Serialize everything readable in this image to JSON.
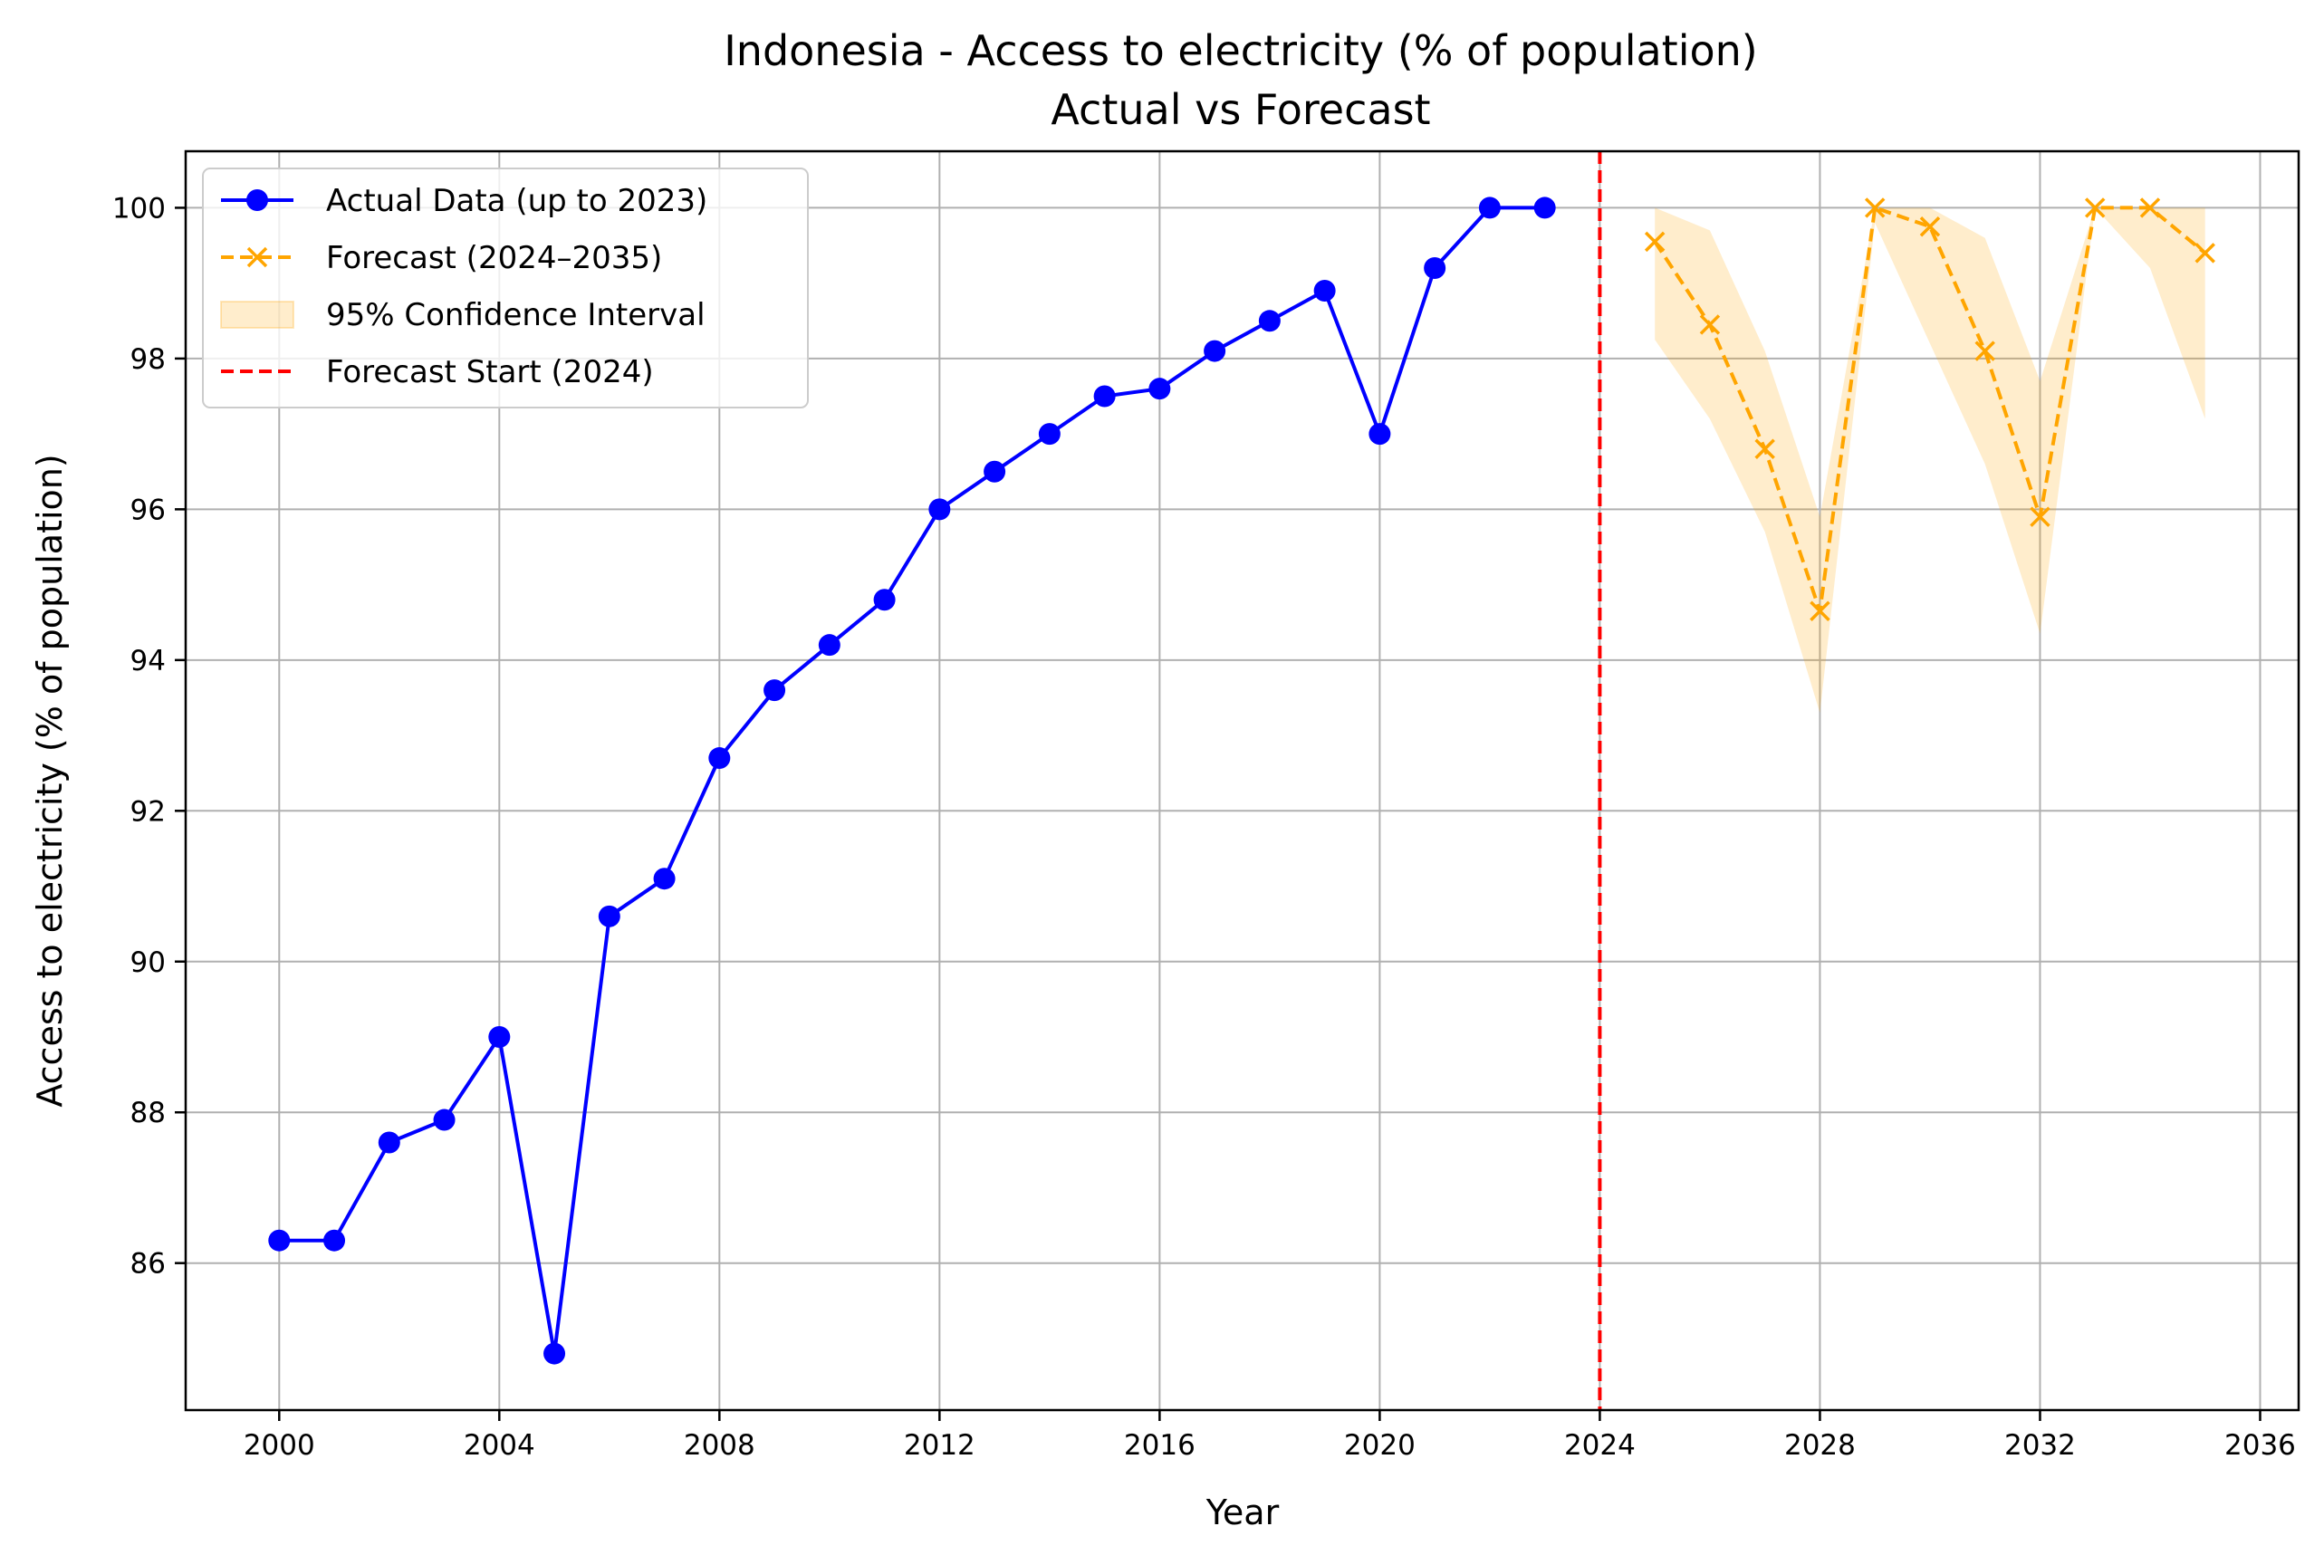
{
  "chart_data": {
    "type": "line",
    "title": "Indonesia - Access to electricity (% of population)",
    "subtitle": "Actual vs Forecast",
    "xlabel": "Year",
    "ylabel": "Access to electricity (% of population)",
    "xlim": [
      1998.3,
      2036.7
    ],
    "ylim": [
      84.05,
      100.75
    ],
    "xticks": [
      2000,
      2004,
      2008,
      2012,
      2016,
      2020,
      2024,
      2028,
      2032,
      2036
    ],
    "yticks": [
      86,
      88,
      90,
      92,
      94,
      96,
      98,
      100
    ],
    "grid": true,
    "legend_position": "top-left",
    "series": [
      {
        "name": "Actual Data (up to 2023)",
        "color": "#0000ff",
        "style": "solid",
        "marker": "circle",
        "x": [
          2000,
          2001,
          2002,
          2003,
          2004,
          2005,
          2006,
          2007,
          2008,
          2009,
          2010,
          2011,
          2012,
          2013,
          2014,
          2015,
          2016,
          2017,
          2018,
          2019,
          2020,
          2021,
          2022,
          2023
        ],
        "y": [
          86.3,
          86.3,
          87.6,
          87.9,
          89.0,
          84.8,
          90.6,
          91.1,
          92.7,
          93.6,
          94.2,
          94.8,
          96.0,
          96.5,
          97.0,
          97.5,
          97.6,
          98.1,
          98.5,
          98.9,
          97.0,
          99.2,
          100.0,
          100.0
        ]
      },
      {
        "name": "Forecast (2024–2035)",
        "color": "#ffa500",
        "style": "dashed",
        "marker": "x",
        "x": [
          2025,
          2026,
          2027,
          2028,
          2029,
          2030,
          2031,
          2032,
          2033,
          2034,
          2035
        ],
        "y": [
          99.55,
          98.45,
          96.8,
          94.65,
          100.0,
          99.75,
          98.1,
          95.9,
          100.0,
          100.0,
          99.4
        ]
      }
    ],
    "confidence_interval": {
      "name": "95% Confidence Interval",
      "color": "#ffa500",
      "x": [
        2025,
        2026,
        2027,
        2028,
        2029,
        2030,
        2031,
        2032,
        2033,
        2034,
        2035
      ],
      "lower": [
        98.25,
        97.2,
        95.7,
        93.3,
        99.8,
        98.2,
        96.6,
        94.35,
        100.0,
        99.2,
        97.2
      ],
      "upper": [
        100.0,
        99.7,
        98.1,
        95.9,
        100.0,
        100.0,
        99.6,
        97.7,
        100.0,
        100.0,
        100.0
      ]
    },
    "vertical_line": {
      "name": "Forecast Start (2024)",
      "x": 2024,
      "color": "#ff0000",
      "style": "dashed"
    }
  }
}
